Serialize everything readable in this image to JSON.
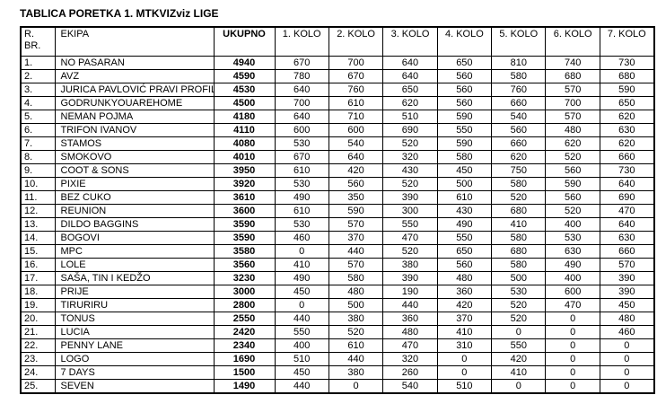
{
  "title": "TABLICA PORETKA 1. MTKVIZviz LIGE",
  "table": {
    "headers": [
      "R.\nBR.",
      "EKIPA",
      "UKUPNO",
      "1. KOLO",
      "2. KOLO",
      "3. KOLO",
      "4. KOLO",
      "5. KOLO",
      "6. KOLO",
      "7. KOLO"
    ],
    "rows": [
      {
        "rank": "1.",
        "team": "NO PASARAN",
        "total": "4940",
        "scores": [
          "670",
          "700",
          "640",
          "650",
          "810",
          "740",
          "730"
        ]
      },
      {
        "rank": "2.",
        "team": "AVZ",
        "total": "4590",
        "scores": [
          "780",
          "670",
          "640",
          "560",
          "580",
          "680",
          "680"
        ]
      },
      {
        "rank": "3.",
        "team": "JURICA PAVLOVIĆ PRAVI PROFIL",
        "total": "4530",
        "scores": [
          "640",
          "760",
          "650",
          "560",
          "760",
          "570",
          "590"
        ]
      },
      {
        "rank": "4.",
        "team": "GODRUNKYOUAREHOME",
        "total": "4500",
        "scores": [
          "700",
          "610",
          "620",
          "560",
          "660",
          "700",
          "650"
        ]
      },
      {
        "rank": "5.",
        "team": "NEMAN POJMA",
        "total": "4180",
        "scores": [
          "640",
          "710",
          "510",
          "590",
          "540",
          "570",
          "620"
        ]
      },
      {
        "rank": "6.",
        "team": "TRIFON IVANOV",
        "total": "4110",
        "scores": [
          "600",
          "600",
          "690",
          "550",
          "560",
          "480",
          "630"
        ]
      },
      {
        "rank": "7.",
        "team": "STAMOS",
        "total": "4080",
        "scores": [
          "530",
          "540",
          "520",
          "590",
          "660",
          "620",
          "620"
        ]
      },
      {
        "rank": "8.",
        "team": "SMOKOVO",
        "total": "4010",
        "scores": [
          "670",
          "640",
          "320",
          "580",
          "620",
          "520",
          "660"
        ]
      },
      {
        "rank": "9.",
        "team": "COOT & SONS",
        "total": "3950",
        "scores": [
          "610",
          "420",
          "430",
          "450",
          "750",
          "560",
          "730"
        ]
      },
      {
        "rank": "10.",
        "team": "PIXIE",
        "total": "3920",
        "scores": [
          "530",
          "560",
          "520",
          "500",
          "580",
          "590",
          "640"
        ]
      },
      {
        "rank": "11.",
        "team": "BEZ CUKO",
        "total": "3610",
        "scores": [
          "490",
          "350",
          "390",
          "610",
          "520",
          "560",
          "690"
        ]
      },
      {
        "rank": "12.",
        "team": "REUNION",
        "total": "3600",
        "scores": [
          "610",
          "590",
          "300",
          "430",
          "680",
          "520",
          "470"
        ]
      },
      {
        "rank": "13.",
        "team": "DILDO BAGGINS",
        "total": "3590",
        "scores": [
          "530",
          "570",
          "550",
          "490",
          "410",
          "400",
          "640"
        ]
      },
      {
        "rank": "14.",
        "team": "BOGOVI",
        "total": "3590",
        "scores": [
          "460",
          "370",
          "470",
          "550",
          "580",
          "530",
          "630"
        ]
      },
      {
        "rank": "15.",
        "team": "MPC",
        "total": "3580",
        "scores": [
          "0",
          "440",
          "520",
          "650",
          "680",
          "630",
          "660"
        ]
      },
      {
        "rank": "16.",
        "team": "LOLE",
        "total": "3560",
        "scores": [
          "410",
          "570",
          "380",
          "560",
          "580",
          "490",
          "570"
        ]
      },
      {
        "rank": "17.",
        "team": "SAŠA, TIN I KEDŽO",
        "total": "3230",
        "scores": [
          "490",
          "580",
          "390",
          "480",
          "500",
          "400",
          "390"
        ]
      },
      {
        "rank": "18.",
        "team": "PRIJE",
        "total": "3000",
        "scores": [
          "450",
          "480",
          "190",
          "360",
          "530",
          "600",
          "390"
        ]
      },
      {
        "rank": "19.",
        "team": "TIRURIRU",
        "total": "2800",
        "scores": [
          "0",
          "500",
          "440",
          "420",
          "520",
          "470",
          "450"
        ]
      },
      {
        "rank": "20.",
        "team": "TONUS",
        "total": "2550",
        "scores": [
          "440",
          "380",
          "360",
          "370",
          "520",
          "0",
          "480"
        ]
      },
      {
        "rank": "21.",
        "team": "LUCIA",
        "total": "2420",
        "scores": [
          "550",
          "520",
          "480",
          "410",
          "0",
          "0",
          "460"
        ]
      },
      {
        "rank": "22.",
        "team": "PENNY LANE",
        "total": "2340",
        "scores": [
          "400",
          "610",
          "470",
          "310",
          "550",
          "0",
          "0"
        ]
      },
      {
        "rank": "23.",
        "team": "LOGO",
        "total": "1690",
        "scores": [
          "510",
          "440",
          "320",
          "0",
          "420",
          "0",
          "0"
        ]
      },
      {
        "rank": "24.",
        "team": "7 DAYS",
        "total": "1500",
        "scores": [
          "450",
          "380",
          "260",
          "0",
          "410",
          "0",
          "0"
        ]
      },
      {
        "rank": "25.",
        "team": "SEVEN",
        "total": "1490",
        "scores": [
          "440",
          "0",
          "540",
          "510",
          "0",
          "0",
          "0"
        ]
      }
    ]
  }
}
